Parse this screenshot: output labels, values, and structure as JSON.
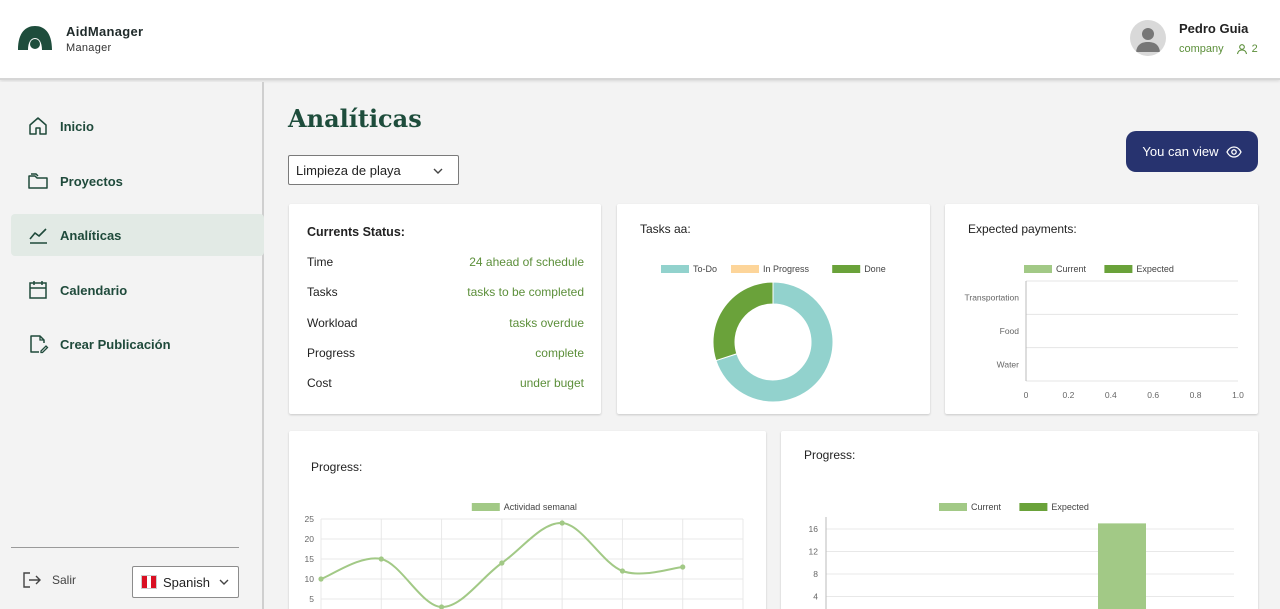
{
  "header": {
    "brand_name": "AidManager",
    "brand_role": "Manager",
    "user_name": "Pedro Guia",
    "user_type": "company",
    "user_count": "2"
  },
  "sidebar": {
    "items": [
      {
        "label": "Inicio",
        "icon": "home-icon"
      },
      {
        "label": "Proyectos",
        "icon": "folder-icon"
      },
      {
        "label": "Analíticas",
        "icon": "chart-line-icon",
        "active": true
      },
      {
        "label": "Calendario",
        "icon": "calendar-icon"
      },
      {
        "label": "Crear Publicación",
        "icon": "edit-document-icon"
      }
    ],
    "logout_label": "Salir",
    "language": "Spanish"
  },
  "main": {
    "title": "Analíticas",
    "project_select": "Limpieza de playa",
    "view_button": "You can view"
  },
  "status_card": {
    "title": "Currents Status:",
    "rows": [
      {
        "key": "Time",
        "value": "24 ahead of schedule"
      },
      {
        "key": "Tasks",
        "value": "tasks to be completed"
      },
      {
        "key": "Workload",
        "value": "tasks overdue"
      },
      {
        "key": "Progress",
        "value": "complete"
      },
      {
        "key": "Cost",
        "value": "under buget"
      }
    ]
  },
  "colors": {
    "todo": "#92d2cd",
    "in_progress": "#fdd59a",
    "done": "#6aa23a",
    "current": "#a2c986",
    "expected": "#6aa23a",
    "accent_button": "#27336f",
    "status_value": "#5c8f3a"
  },
  "chart_data": [
    {
      "type": "pie",
      "title": "Tasks aa:",
      "labels": [
        "To-Do",
        "In Progress",
        "Done"
      ],
      "values": [
        70,
        0,
        30
      ]
    },
    {
      "type": "bar",
      "orientation": "horizontal",
      "title": "Expected payments:",
      "categories": [
        "Transportation",
        "Food",
        "Water"
      ],
      "series": [
        {
          "name": "Current",
          "values": [
            0,
            0,
            0
          ]
        },
        {
          "name": "Expected",
          "values": [
            0,
            0,
            0
          ]
        }
      ],
      "xlim": [
        0,
        1.0
      ],
      "xticks": [
        "0",
        "0.2",
        "0.4",
        "0.6",
        "0.8",
        "1.0"
      ],
      "legend": "top"
    },
    {
      "type": "line",
      "title": "Progress:",
      "series": [
        {
          "name": "Actividad semanal",
          "values": [
            10,
            15,
            3,
            14,
            24,
            12,
            13
          ]
        }
      ],
      "ylim": [
        0,
        25
      ],
      "yticks": [
        "25",
        "20",
        "15",
        "10",
        "5"
      ],
      "legend": "top"
    },
    {
      "type": "bar",
      "title": "Progress:",
      "categories": [
        "",
        ""
      ],
      "series": [
        {
          "name": "Current",
          "values": [
            0,
            17
          ]
        },
        {
          "name": "Expected",
          "values": [
            0,
            0
          ]
        }
      ],
      "ylim": [
        0,
        16
      ],
      "yticks": [
        "16",
        "12",
        "8",
        "4"
      ],
      "legend": "top"
    }
  ]
}
